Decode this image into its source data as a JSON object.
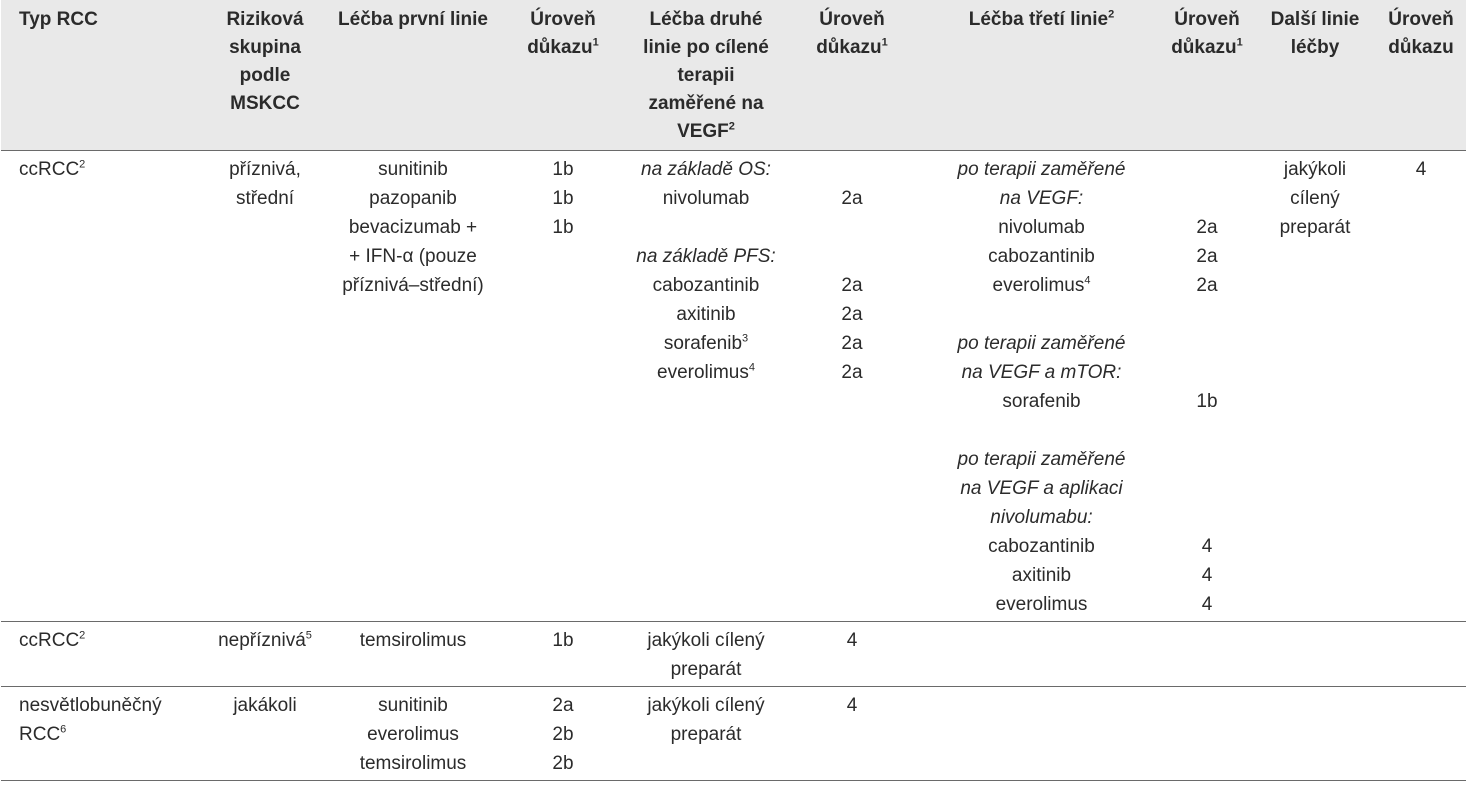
{
  "header": [
    {
      "text": "Typ RCC",
      "sup": ""
    },
    {
      "text": "Riziková skupina podle MSKCC",
      "sup": ""
    },
    {
      "text": "Léčba první linie",
      "sup": ""
    },
    {
      "text": "Úroveň důkazu",
      "sup": "1"
    },
    {
      "text": "Léčba druhé linie po cílené terapii zaměřené na VEGF",
      "sup": "2"
    },
    {
      "text": "Úroveň důkazu",
      "sup": "1"
    },
    {
      "text": "Léčba třetí linie",
      "sup": "2"
    },
    {
      "text": "Úroveň důkazu",
      "sup": "1"
    },
    {
      "text": "Další linie léčby",
      "sup": ""
    },
    {
      "text": "Úroveň důkazu",
      "sup": ""
    }
  ],
  "rows": [
    {
      "type": [
        {
          "t": "ccRCC",
          "sup": "2"
        }
      ],
      "risk": [
        {
          "t": "příznivá,"
        },
        {
          "t": "střední"
        }
      ],
      "first_line": [
        {
          "t": "sunitinib"
        },
        {
          "t": "pazopanib"
        },
        {
          "t": "bevacizumab +"
        },
        {
          "t": "+ IFN-α (pouze"
        },
        {
          "t": "příznivá–střední)"
        }
      ],
      "first_evidence": [
        {
          "t": "1b"
        },
        {
          "t": "1b"
        },
        {
          "t": "1b"
        }
      ],
      "second_line": [
        {
          "t": "na základě OS:",
          "it": true
        },
        {
          "t": "nivolumab"
        },
        {
          "t": ""
        },
        {
          "t": "na základě PFS:",
          "it": true
        },
        {
          "t": "cabozantinib"
        },
        {
          "t": "axitinib"
        },
        {
          "t": "sorafenib",
          "sup": "3"
        },
        {
          "t": "everolimus",
          "sup": "4"
        }
      ],
      "second_evidence": [
        {
          "t": ""
        },
        {
          "t": "2a"
        },
        {
          "t": ""
        },
        {
          "t": ""
        },
        {
          "t": "2a"
        },
        {
          "t": "2a"
        },
        {
          "t": "2a"
        },
        {
          "t": "2a"
        }
      ],
      "third_line": [
        {
          "t": "po terapii zaměřené",
          "it": true
        },
        {
          "t": "na VEGF:",
          "it": true
        },
        {
          "t": "nivolumab"
        },
        {
          "t": "cabozantinib"
        },
        {
          "t": "everolimus",
          "sup": "4"
        },
        {
          "t": ""
        },
        {
          "t": "po terapii zaměřené",
          "it": true
        },
        {
          "t": "na VEGF a mTOR:",
          "it": true
        },
        {
          "t": "sorafenib"
        },
        {
          "t": ""
        },
        {
          "t": "po terapii zaměřené",
          "it": true
        },
        {
          "t": "na VEGF a aplikaci",
          "it": true
        },
        {
          "t": "nivolumabu:",
          "it": true
        },
        {
          "t": "cabozantinib"
        },
        {
          "t": "axitinib"
        },
        {
          "t": "everolimus"
        }
      ],
      "third_evidence": [
        {
          "t": ""
        },
        {
          "t": ""
        },
        {
          "t": "2a"
        },
        {
          "t": "2a"
        },
        {
          "t": "2a"
        },
        {
          "t": ""
        },
        {
          "t": ""
        },
        {
          "t": ""
        },
        {
          "t": "1b"
        },
        {
          "t": ""
        },
        {
          "t": ""
        },
        {
          "t": ""
        },
        {
          "t": ""
        },
        {
          "t": "4"
        },
        {
          "t": "4"
        },
        {
          "t": "4"
        }
      ],
      "further_line": [
        {
          "t": "jakýkoli"
        },
        {
          "t": "cílený"
        },
        {
          "t": "preparát"
        }
      ],
      "further_evidence": [
        {
          "t": "4"
        }
      ]
    },
    {
      "type": [
        {
          "t": "ccRCC",
          "sup": "2"
        }
      ],
      "risk": [
        {
          "t": "nepříznivá",
          "sup": "5"
        }
      ],
      "first_line": [
        {
          "t": "temsirolimus"
        }
      ],
      "first_evidence": [
        {
          "t": "1b"
        }
      ],
      "second_line": [
        {
          "t": "jakýkoli cílený"
        },
        {
          "t": "preparát"
        }
      ],
      "second_evidence": [
        {
          "t": "4"
        }
      ],
      "third_line": [],
      "third_evidence": [],
      "further_line": [],
      "further_evidence": []
    },
    {
      "type": [
        {
          "t": "nesvětlobuněčný"
        },
        {
          "t": "RCC",
          "sup": "6"
        }
      ],
      "risk": [
        {
          "t": "jakákoli"
        }
      ],
      "first_line": [
        {
          "t": "sunitinib"
        },
        {
          "t": "everolimus"
        },
        {
          "t": "temsirolimus"
        }
      ],
      "first_evidence": [
        {
          "t": "2a"
        },
        {
          "t": "2b"
        },
        {
          "t": "2b"
        }
      ],
      "second_line": [
        {
          "t": "jakýkoli cílený"
        },
        {
          "t": "preparát"
        }
      ],
      "second_evidence": [
        {
          "t": "4"
        }
      ],
      "third_line": [],
      "third_evidence": [],
      "further_line": [],
      "further_evidence": []
    }
  ]
}
